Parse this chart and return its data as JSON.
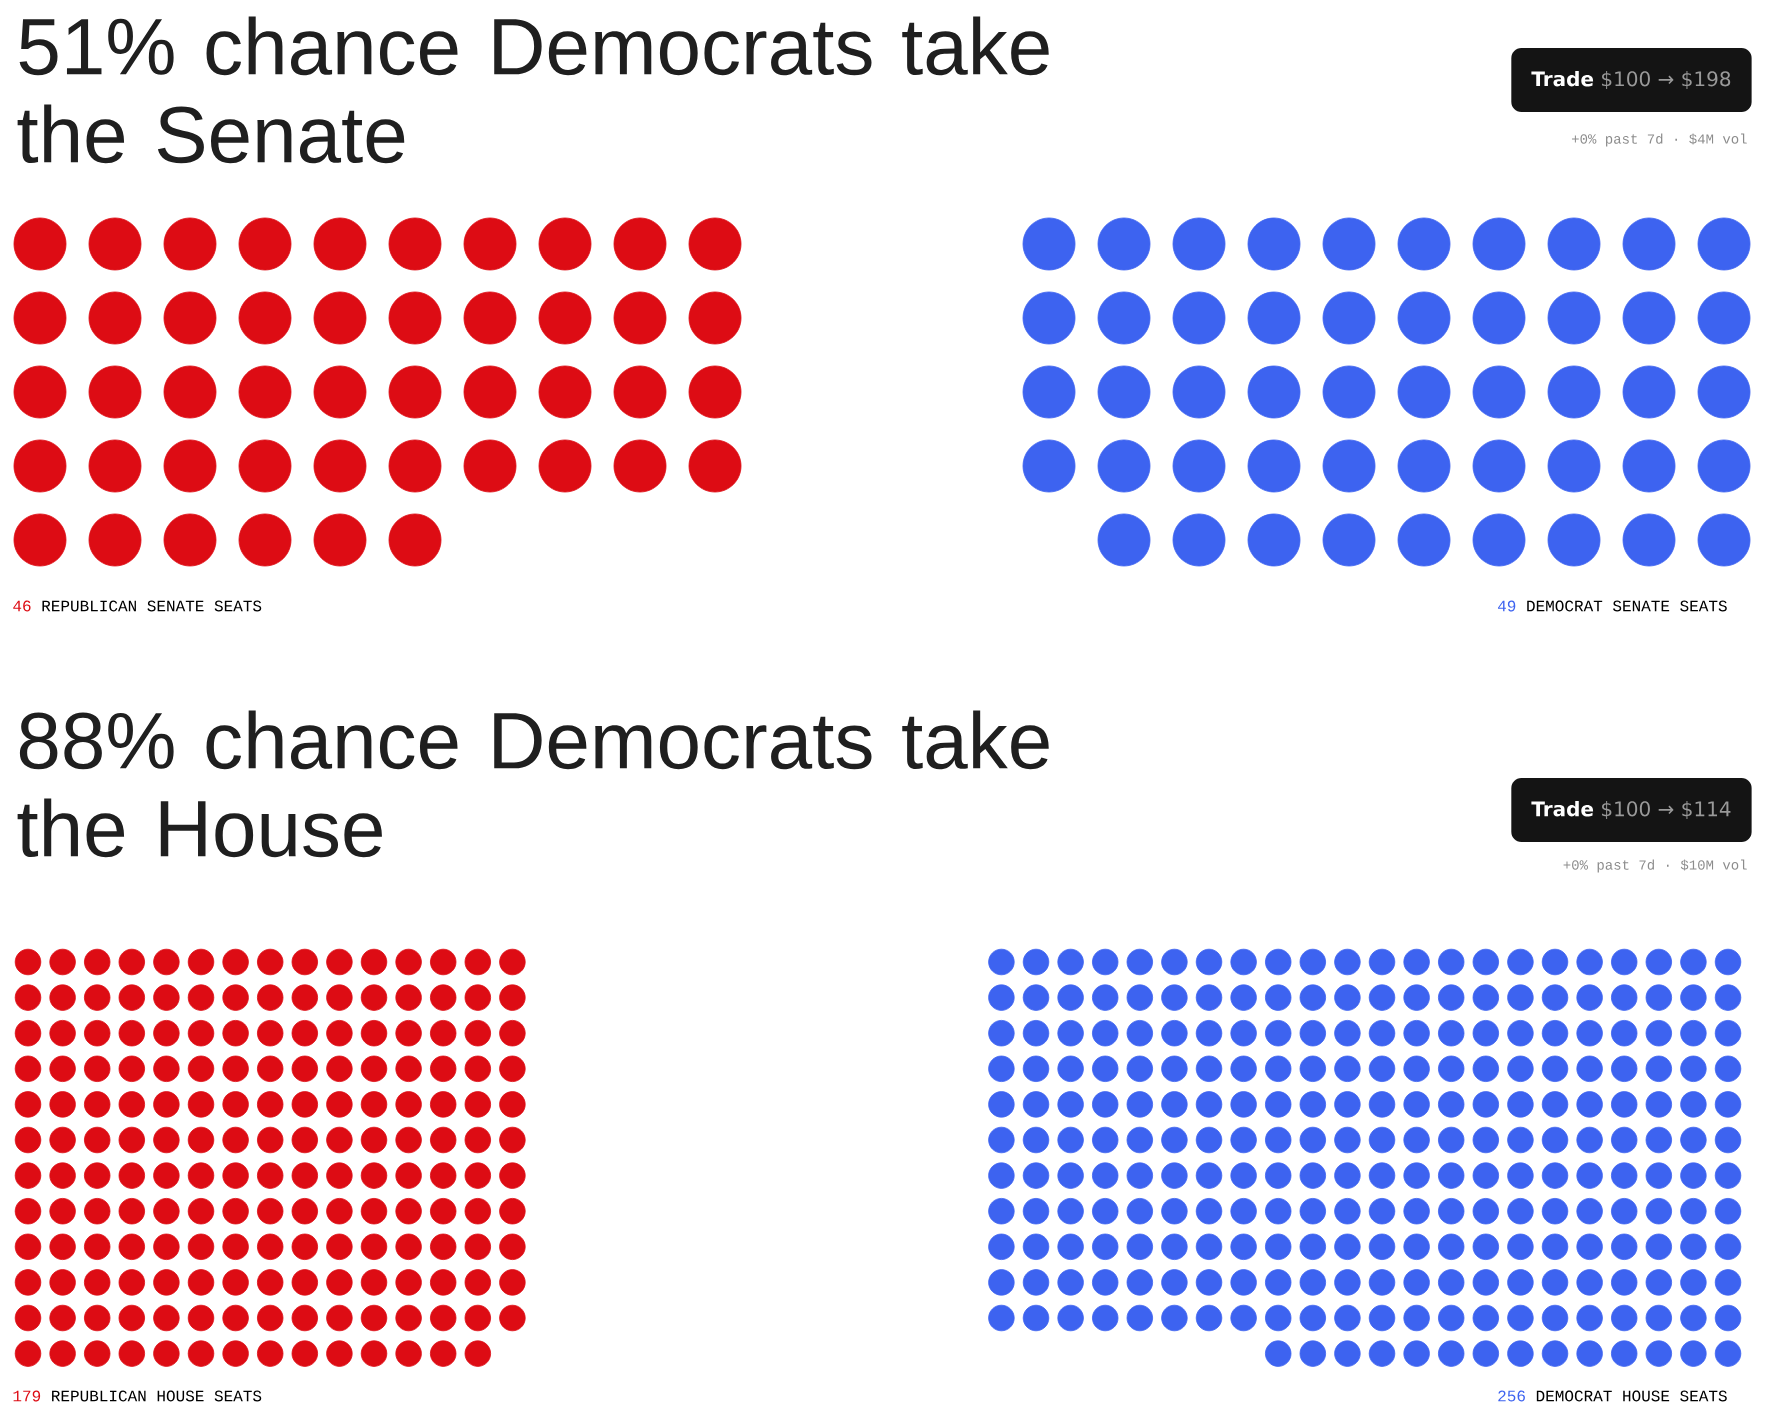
{
  "chart_data": [
    {
      "type": "other",
      "title": "51% chance Democrats take the Senate",
      "categories": [
        "REPUBLICAN SENATE SEATS",
        "DEMOCRAT SENATE SEATS"
      ],
      "values": [
        46,
        49
      ],
      "colors": [
        "#dd0c14",
        "#3d63f0"
      ],
      "data_labels": true,
      "annotations": [
        "**Trade** $100 → $198",
        "+0% past 7d · $4M vol"
      ]
    },
    {
      "type": "other",
      "title": "88% chance Democrats take the House",
      "categories": [
        "REPUBLICAN HOUSE SEATS",
        "DEMOCRAT HOUSE SEATS"
      ],
      "values": [
        179,
        256
      ],
      "colors": [
        "#dd0c14",
        "#3d63f0"
      ],
      "data_labels": true,
      "annotations": [
        "**Trade** $100 → $114",
        "+0% past 7d · $10M vol"
      ]
    }
  ]
}
